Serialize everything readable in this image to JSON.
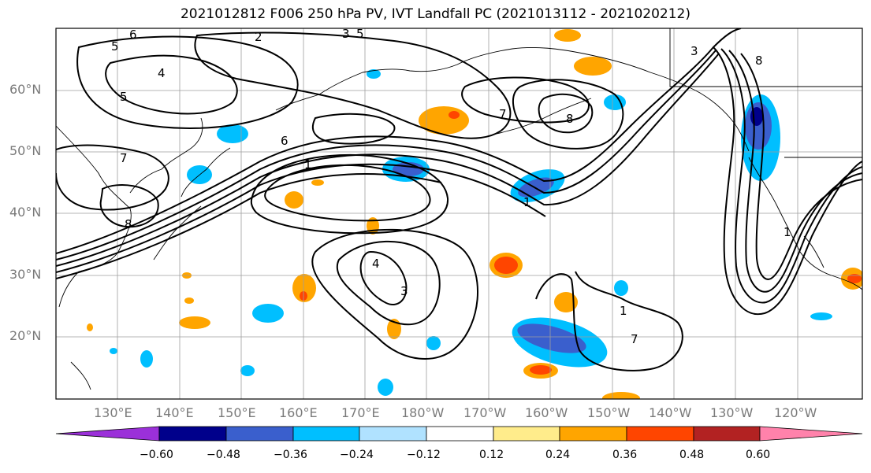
{
  "title": "2021012812 F006 250 hPa PV, IVT Landfall PC (2021013112 - 2021020212)",
  "lat_labels": [
    "60°N",
    "50°N",
    "40°N",
    "30°N",
    "20°N"
  ],
  "lon_labels": [
    "130°E",
    "140°E",
    "150°E",
    "160°E",
    "170°E",
    "180°W",
    "170°W",
    "160°W",
    "150°W",
    "140°W",
    "130°W",
    "120°W"
  ],
  "colorbar": {
    "ticks": [
      "−0.60",
      "−0.48",
      "−0.36",
      "−0.24",
      "−0.12",
      "0.12",
      "0.24",
      "0.36",
      "0.48",
      "0.60"
    ],
    "colors": [
      "#9b30d9",
      "#00008b",
      "#3a5fcd",
      "#00bfff",
      "#b0e2ff",
      "#ffffff",
      "#ffec8b",
      "#ffa500",
      "#ff4500",
      "#b22222",
      "#ff82ab"
    ]
  },
  "contour_labels": [
    "6",
    "5",
    "4",
    "5",
    "2",
    "3",
    "5",
    "7",
    "8",
    "7",
    "6",
    "1",
    "8",
    "4",
    "3",
    "1",
    "1",
    "7",
    "8",
    "1",
    "3"
  ],
  "shading_colors": {
    "light_blue": "#b0e2ff",
    "blue": "#00bfff",
    "mid_blue": "#3a5fcd",
    "dark_blue": "#00008b",
    "yellow": "#ffec8b",
    "orange": "#ffa500",
    "red_orange": "#ff4500"
  }
}
